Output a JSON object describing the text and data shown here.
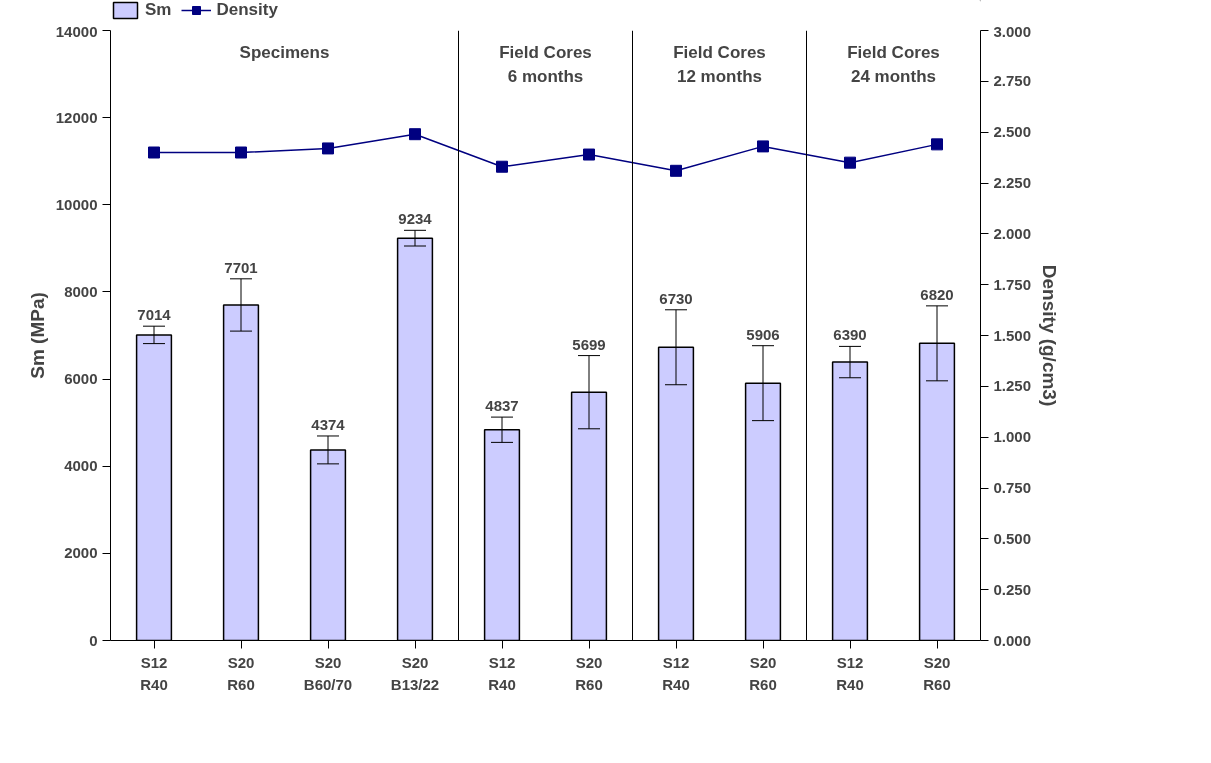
{
  "chart_data": {
    "type": "bar",
    "categories": [
      "S12\nR40",
      "S20\nR60",
      "S20\nB60/70",
      "S20\nB13/22",
      "S12\nR40",
      "S20\nR60",
      "S12\nR40",
      "S20\nR60",
      "S12\nR40",
      "S20\nR60"
    ],
    "ylabel": "Sm (MPa)",
    "y2label": "Density (g/cm3)",
    "ylim": [
      0,
      14000
    ],
    "yticks": [
      0,
      2000,
      4000,
      6000,
      8000,
      10000,
      12000,
      14000
    ],
    "y2lim": [
      0,
      3
    ],
    "y2ticks": [
      {
        "value": 0,
        "label": "0.000"
      },
      {
        "value": 0.25,
        "label": "0.250"
      },
      {
        "value": 0.5,
        "label": "0.500"
      },
      {
        "value": 0.75,
        "label": "0.750"
      },
      {
        "value": 1,
        "label": "1.000"
      },
      {
        "value": 1.25,
        "label": "1.250"
      },
      {
        "value": 1.5,
        "label": "1.500"
      },
      {
        "value": 1.75,
        "label": "1.750"
      },
      {
        "value": 2,
        "label": "2.000"
      },
      {
        "value": 2.25,
        "label": "2.250"
      },
      {
        "value": 2.5,
        "label": "2.500"
      },
      {
        "value": 2.75,
        "label": "2.750"
      },
      {
        "value": 3,
        "label": "3.000"
      }
    ],
    "series": [
      {
        "name": "Sm",
        "color": "#ccccff",
        "values": [
          7014,
          7701,
          4374,
          9234,
          4837,
          5699,
          6730,
          5906,
          6390,
          6820
        ],
        "errors": [
          200,
          600,
          320,
          180,
          290,
          840,
          860,
          860,
          360,
          860
        ],
        "value_labels": [
          "7014",
          "7701",
          "4374",
          "9234",
          "4837",
          "5699",
          "6730",
          "5906",
          "6390",
          "6820"
        ]
      },
      {
        "name": "Density",
        "type": "line",
        "axis": "y2",
        "color": "#000080",
        "marker": "square",
        "values": [
          2.4,
          2.4,
          2.42,
          2.49,
          2.33,
          2.39,
          2.31,
          2.43,
          2.35,
          2.44
        ]
      }
    ],
    "annotations": [
      "Specimens",
      "Field Cores\n6 months",
      "Field Cores\n12 months",
      "Field Cores\n24 months"
    ],
    "legend": "top",
    "grid": false
  }
}
